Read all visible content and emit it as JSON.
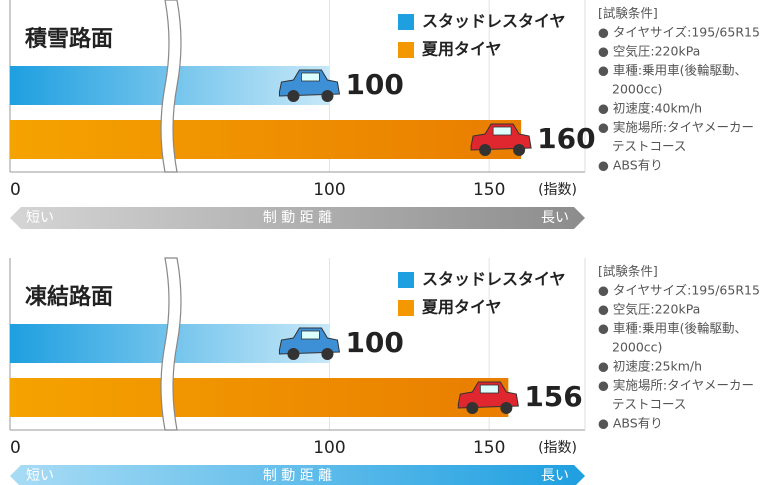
{
  "chart_data": [
    {
      "type": "bar",
      "orientation": "horizontal",
      "title": "積雪路面",
      "series": [
        {
          "name": "スタッドレスタイヤ",
          "color": "#1e9fe0",
          "values": [
            100
          ]
        },
        {
          "name": "夏用タイヤ",
          "color": "#f39800",
          "values": [
            160
          ]
        }
      ],
      "xlim": [
        0,
        180
      ],
      "xticks": [
        0,
        100,
        150
      ],
      "x_unit": "(指数)",
      "grid": true,
      "axis_break": true,
      "arrow": {
        "short": "短い",
        "label": "制 動 距 離",
        "long": "長い",
        "color": "#8c8c8c"
      }
    },
    {
      "type": "bar",
      "orientation": "horizontal",
      "title": "凍結路面",
      "series": [
        {
          "name": "スタッドレスタイヤ",
          "color": "#1e9fe0",
          "values": [
            100
          ]
        },
        {
          "name": "夏用タイヤ",
          "color": "#f39800",
          "values": [
            156
          ]
        }
      ],
      "xlim": [
        0,
        180
      ],
      "xticks": [
        0,
        100,
        150
      ],
      "x_unit": "(指数)",
      "grid": true,
      "axis_break": true,
      "arrow": {
        "short": "短い",
        "label": "制 動 距 離",
        "long": "長い",
        "color": "#1e9fe0"
      }
    }
  ],
  "conditions": [
    {
      "title": "[試験条件]",
      "items": [
        "● タイヤサイズ:195/65R15",
        "● 空気圧:220kPa",
        "● 車種:乗用車(後輪駆動、",
        "2000cc)",
        "● 初速度:40km/h",
        "● 実施場所:タイヤメーカー",
        "テストコース",
        "● ABS有り"
      ]
    },
    {
      "title": "[試験条件]",
      "items": [
        "● タイヤサイズ:195/65R15",
        "● 空気圧:220kPa",
        "● 車種:乗用車(後輪駆動、",
        "2000cc)",
        "● 初速度:25km/h",
        "● 実施場所:タイヤメーカー",
        "テストコース",
        "● ABS有り"
      ]
    }
  ]
}
